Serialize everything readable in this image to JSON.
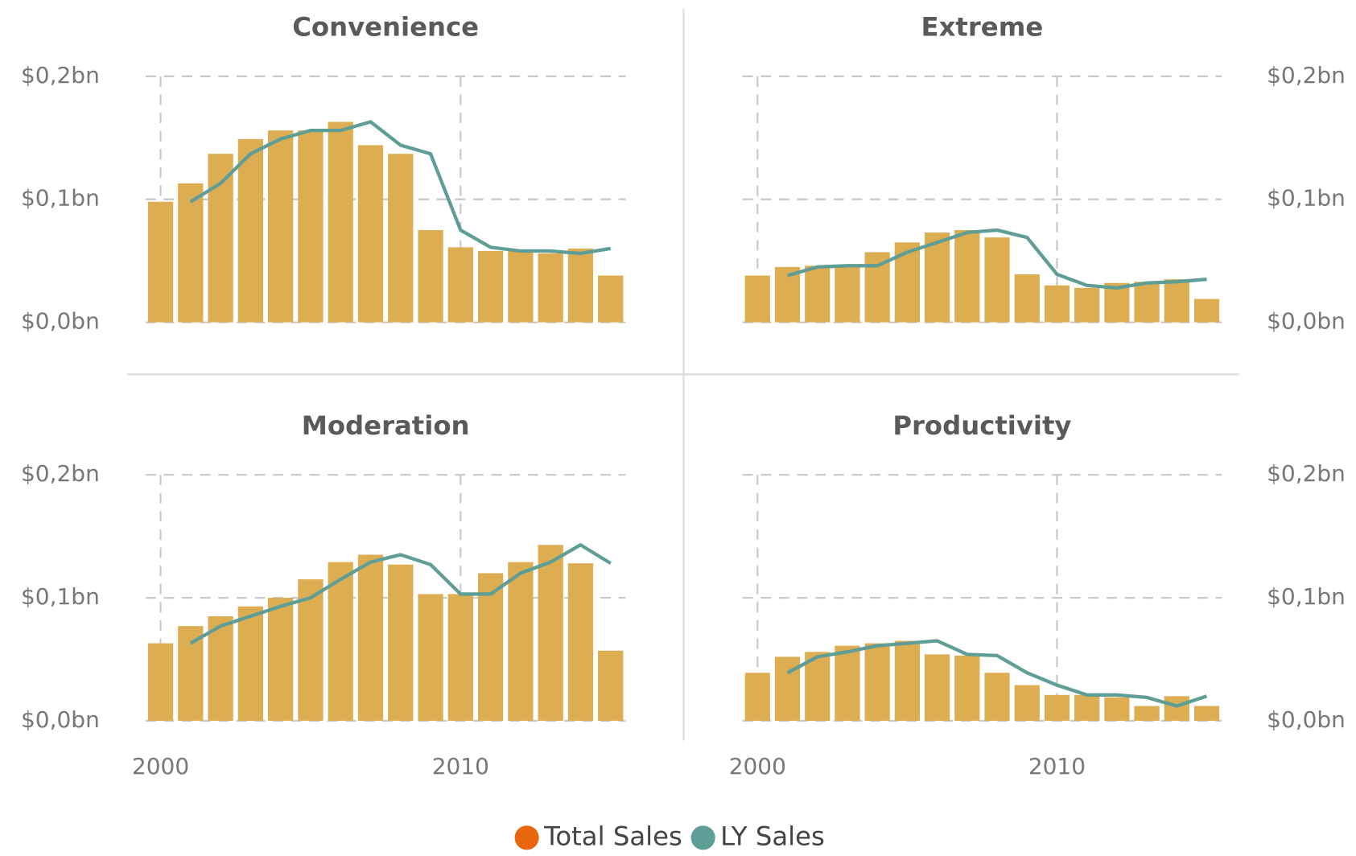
{
  "chart_data": [
    {
      "type": "combo",
      "title": "Convenience",
      "x": [
        2000,
        2001,
        2002,
        2003,
        2004,
        2005,
        2006,
        2007,
        2008,
        2009,
        2010,
        2011,
        2012,
        2013,
        2014,
        2015
      ],
      "series": [
        {
          "name": "Total Sales",
          "color": "#E8670E",
          "bar_color": "#DDAD52",
          "type": "bar",
          "values": [
            0.098,
            0.113,
            0.137,
            0.149,
            0.156,
            0.156,
            0.163,
            0.144,
            0.137,
            0.075,
            0.061,
            0.058,
            0.058,
            0.056,
            0.06,
            0.038
          ]
        },
        {
          "name": "LY Sales",
          "color": "#5F9E96",
          "type": "line",
          "values": [
            null,
            0.098,
            0.113,
            0.137,
            0.149,
            0.156,
            0.156,
            0.163,
            0.144,
            0.137,
            0.075,
            0.061,
            0.058,
            0.058,
            0.056,
            0.06
          ]
        }
      ],
      "xlim": [
        1999.5,
        2015.5
      ],
      "xticks": [
        2000,
        2010
      ],
      "ylim": [
        0,
        0.2
      ],
      "yticks": [
        {
          "value": 0,
          "label": "$0,0bn"
        },
        {
          "value": 0.1,
          "label": "$0,1bn"
        },
        {
          "value": 0.2,
          "label": "$0,2bn"
        }
      ],
      "grid": true
    },
    {
      "type": "combo",
      "title": "Extreme",
      "x": [
        2000,
        2001,
        2002,
        2003,
        2004,
        2005,
        2006,
        2007,
        2008,
        2009,
        2010,
        2011,
        2012,
        2013,
        2014,
        2015
      ],
      "series": [
        {
          "name": "Total Sales",
          "color": "#E8670E",
          "bar_color": "#DDAD52",
          "type": "bar",
          "values": [
            0.038,
            0.045,
            0.046,
            0.046,
            0.057,
            0.065,
            0.073,
            0.075,
            0.069,
            0.039,
            0.03,
            0.028,
            0.032,
            0.033,
            0.035,
            0.019
          ]
        },
        {
          "name": "LY Sales",
          "color": "#5F9E96",
          "type": "line",
          "values": [
            null,
            0.038,
            0.045,
            0.046,
            0.046,
            0.057,
            0.065,
            0.073,
            0.075,
            0.069,
            0.039,
            0.03,
            0.028,
            0.032,
            0.033,
            0.035
          ]
        }
      ],
      "xlim": [
        1999.5,
        2015.5
      ],
      "xticks": [
        2000,
        2010
      ],
      "ylim": [
        0,
        0.2
      ],
      "yticks": [
        {
          "value": 0,
          "label": "$0,0bn"
        },
        {
          "value": 0.1,
          "label": "$0,1bn"
        },
        {
          "value": 0.2,
          "label": "$0,2bn"
        }
      ],
      "grid": true
    },
    {
      "type": "combo",
      "title": "Moderation",
      "x": [
        2000,
        2001,
        2002,
        2003,
        2004,
        2005,
        2006,
        2007,
        2008,
        2009,
        2010,
        2011,
        2012,
        2013,
        2014,
        2015
      ],
      "series": [
        {
          "name": "Total Sales",
          "color": "#E8670E",
          "bar_color": "#DDAD52",
          "type": "bar",
          "values": [
            0.063,
            0.077,
            0.085,
            0.093,
            0.1,
            0.115,
            0.129,
            0.135,
            0.127,
            0.103,
            0.103,
            0.12,
            0.129,
            0.143,
            0.128,
            0.057
          ]
        },
        {
          "name": "LY Sales",
          "color": "#5F9E96",
          "type": "line",
          "values": [
            null,
            0.063,
            0.077,
            0.085,
            0.093,
            0.1,
            0.115,
            0.129,
            0.135,
            0.127,
            0.103,
            0.103,
            0.12,
            0.129,
            0.143,
            0.128
          ]
        }
      ],
      "xlim": [
        1999.5,
        2015.5
      ],
      "xticks": [
        2000,
        2010
      ],
      "ylim": [
        0,
        0.2
      ],
      "yticks": [
        {
          "value": 0,
          "label": "$0,0bn"
        },
        {
          "value": 0.1,
          "label": "$0,1bn"
        },
        {
          "value": 0.2,
          "label": "$0,2bn"
        }
      ],
      "grid": true
    },
    {
      "type": "combo",
      "title": "Productivity",
      "x": [
        2000,
        2001,
        2002,
        2003,
        2004,
        2005,
        2006,
        2007,
        2008,
        2009,
        2010,
        2011,
        2012,
        2013,
        2014,
        2015
      ],
      "series": [
        {
          "name": "Total Sales",
          "color": "#E8670E",
          "bar_color": "#DDAD52",
          "type": "bar",
          "values": [
            0.039,
            0.052,
            0.056,
            0.061,
            0.063,
            0.065,
            0.054,
            0.053,
            0.039,
            0.029,
            0.021,
            0.021,
            0.019,
            0.012,
            0.02,
            0.012
          ]
        },
        {
          "name": "LY Sales",
          "color": "#5F9E96",
          "type": "line",
          "values": [
            null,
            0.039,
            0.052,
            0.056,
            0.061,
            0.063,
            0.065,
            0.054,
            0.053,
            0.039,
            0.029,
            0.021,
            0.021,
            0.019,
            0.012,
            0.02
          ]
        }
      ],
      "xlim": [
        1999.5,
        2015.5
      ],
      "xticks": [
        2000,
        2010
      ],
      "ylim": [
        0,
        0.2
      ],
      "yticks": [
        {
          "value": 0,
          "label": "$0,0bn"
        },
        {
          "value": 0.1,
          "label": "$0,1bn"
        },
        {
          "value": 0.2,
          "label": "$0,2bn"
        }
      ],
      "grid": true
    }
  ]
}
